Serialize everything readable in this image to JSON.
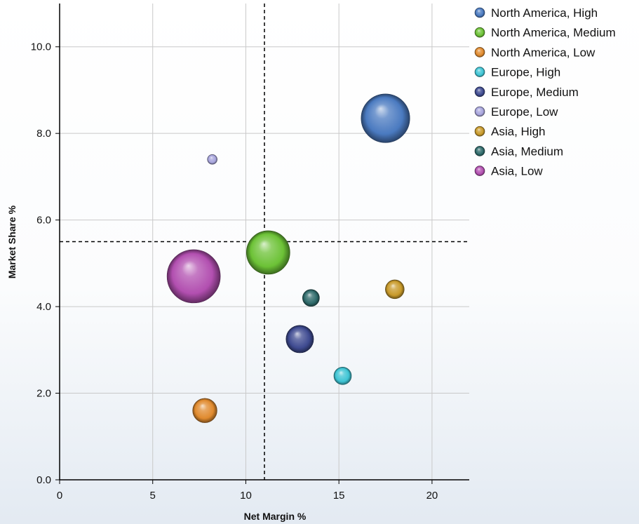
{
  "chart_data": {
    "type": "scatter",
    "subtype": "bubble",
    "xlabel": "Net Margin %",
    "ylabel": "Market Share %",
    "xlim": [
      0,
      22
    ],
    "ylim": [
      0,
      11
    ],
    "x_ticks": [
      0,
      5,
      10,
      15,
      20
    ],
    "x_tick_labels": [
      "0",
      "5",
      "10",
      "15",
      "20"
    ],
    "y_ticks": [
      0,
      2,
      4,
      6,
      8,
      10
    ],
    "y_tick_labels": [
      "0.0",
      "2.0",
      "4.0",
      "6.0",
      "8.0",
      "10.0"
    ],
    "grid": true,
    "legend_position": "top-right",
    "reference_lines": {
      "x": 11.0,
      "y": 5.5,
      "style": "dashed"
    },
    "series": [
      {
        "name": "North America, High",
        "x": 17.5,
        "y": 8.35,
        "size": 10,
        "color": "#4a7ac0"
      },
      {
        "name": "North America, Medium",
        "x": 11.2,
        "y": 5.25,
        "size": 8,
        "color": "#6cc236"
      },
      {
        "name": "North America, Low",
        "x": 7.8,
        "y": 1.6,
        "size": 2.5,
        "color": "#e08a2e"
      },
      {
        "name": "Europe, High",
        "x": 15.2,
        "y": 2.4,
        "size": 1.3,
        "color": "#3ec4d4"
      },
      {
        "name": "Europe, Medium",
        "x": 12.9,
        "y": 3.25,
        "size": 3.2,
        "color": "#3e4a90"
      },
      {
        "name": "Europe, Low",
        "x": 8.2,
        "y": 7.4,
        "size": 0.4,
        "color": "#a7a4dc"
      },
      {
        "name": "Asia, High",
        "x": 18.0,
        "y": 4.4,
        "size": 1.5,
        "color": "#c89a2a"
      },
      {
        "name": "Asia, Medium",
        "x": 13.5,
        "y": 4.2,
        "size": 1.2,
        "color": "#2e6a6a"
      },
      {
        "name": "Asia, Low",
        "x": 7.2,
        "y": 4.7,
        "size": 12,
        "color": "#b24fb0"
      }
    ]
  }
}
